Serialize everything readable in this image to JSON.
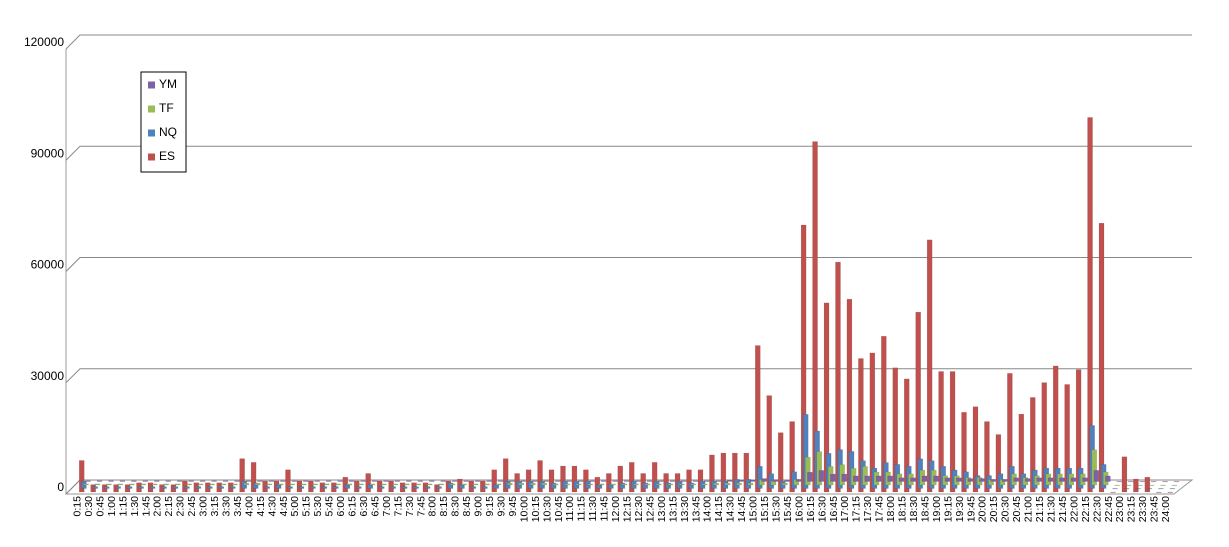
{
  "chart_data": {
    "type": "bar",
    "categories": [
      "0:15",
      "0:30",
      "0:45",
      "1:00",
      "1:15",
      "1:30",
      "1:45",
      "2:00",
      "2:15",
      "2:30",
      "2:45",
      "3:00",
      "3:15",
      "3:30",
      "3:45",
      "4:00",
      "4:15",
      "4:30",
      "4:45",
      "5:00",
      "5:15",
      "5:30",
      "5:45",
      "6:00",
      "6:15",
      "6:30",
      "6:45",
      "7:00",
      "7:15",
      "7:30",
      "7:45",
      "8:00",
      "8:15",
      "8:30",
      "8:45",
      "9:00",
      "9:15",
      "9:30",
      "9:45",
      "10:00",
      "10:15",
      "10:30",
      "10:45",
      "11:00",
      "11:15",
      "11:30",
      "11:45",
      "12:00",
      "12:15",
      "12:30",
      "12:45",
      "13:00",
      "13:15",
      "13:30",
      "13:45",
      "14:00",
      "14:15",
      "14:30",
      "14:45",
      "15:00",
      "15:15",
      "15:30",
      "15:45",
      "16:00",
      "16:15",
      "16:30",
      "16:45",
      "17:00",
      "17:15",
      "17:30",
      "17:45",
      "18:00",
      "18:15",
      "18:30",
      "18:45",
      "19:00",
      "19:15",
      "19:30",
      "19:45",
      "20:00",
      "20:15",
      "20:30",
      "20:45",
      "21:00",
      "21:15",
      "21:30",
      "21:45",
      "22:00",
      "22:15",
      "22:30",
      "22:45",
      "23:00",
      "23:15",
      "23:30",
      "23:45",
      "24:00"
    ],
    "series": [
      {
        "name": "YM",
        "color": "#7e62a3",
        "values": [
          200,
          200,
          200,
          200,
          200,
          200,
          200,
          200,
          200,
          200,
          200,
          200,
          200,
          200,
          200,
          200,
          200,
          200,
          200,
          200,
          200,
          200,
          200,
          200,
          200,
          200,
          200,
          200,
          200,
          200,
          200,
          200,
          200,
          200,
          200,
          200,
          200,
          200,
          200,
          200,
          200,
          200,
          200,
          200,
          200,
          200,
          200,
          200,
          200,
          200,
          200,
          200,
          200,
          200,
          200,
          200,
          300,
          300,
          300,
          800,
          500,
          300,
          600,
          2500,
          3000,
          2000,
          2000,
          1500,
          1500,
          1500,
          1500,
          1000,
          1000,
          1500,
          1500,
          1000,
          1000,
          800,
          800,
          600,
          600,
          1000,
          800,
          1000,
          1000,
          1000,
          1000,
          1000,
          3000,
          1500,
          0,
          0,
          0,
          0,
          0,
          0
        ]
      },
      {
        "name": "TF",
        "color": "#9bbb59",
        "values": [
          300,
          300,
          300,
          300,
          300,
          300,
          300,
          300,
          300,
          300,
          300,
          300,
          300,
          300,
          500,
          500,
          300,
          300,
          300,
          300,
          300,
          300,
          300,
          300,
          300,
          300,
          300,
          300,
          300,
          300,
          300,
          300,
          300,
          300,
          300,
          300,
          300,
          500,
          500,
          500,
          500,
          300,
          300,
          300,
          300,
          300,
          300,
          300,
          300,
          300,
          300,
          300,
          300,
          300,
          300,
          500,
          500,
          500,
          500,
          1500,
          1000,
          500,
          1500,
          7500,
          9000,
          5000,
          5500,
          4500,
          5000,
          3500,
          3500,
          3000,
          3000,
          4000,
          4000,
          2500,
          2500,
          2000,
          2000,
          1500,
          1500,
          3000,
          2000,
          2500,
          3000,
          3000,
          3000,
          3000,
          9500,
          3500,
          0,
          0,
          0,
          0,
          0,
          0
        ]
      },
      {
        "name": "NQ",
        "color": "#4f81bd",
        "values": [
          2000,
          500,
          500,
          500,
          500,
          500,
          500,
          500,
          500,
          500,
          500,
          500,
          500,
          500,
          2000,
          1500,
          500,
          1000,
          500,
          500,
          500,
          500,
          500,
          1000,
          500,
          1000,
          500,
          500,
          500,
          500,
          500,
          500,
          1500,
          1000,
          500,
          500,
          1000,
          2000,
          2000,
          2000,
          2000,
          1500,
          2000,
          2000,
          2000,
          1000,
          1000,
          1500,
          2000,
          1500,
          2000,
          1500,
          2000,
          1500,
          2000,
          2000,
          2000,
          2500,
          2500,
          6000,
          4000,
          2000,
          4500,
          20000,
          15500,
          9500,
          10500,
          10000,
          7500,
          5500,
          7000,
          6500,
          6000,
          8000,
          7500,
          6000,
          5000,
          4500,
          3500,
          3500,
          4000,
          6000,
          4000,
          5000,
          5500,
          5500,
          5500,
          5500,
          17000,
          6500,
          0,
          0,
          0,
          0,
          0,
          0
        ]
      },
      {
        "name": "ES",
        "color": "#c0504d",
        "values": [
          8500,
          2000,
          2000,
          2000,
          2000,
          2500,
          2500,
          2000,
          2000,
          3000,
          2500,
          2500,
          2500,
          2500,
          9000,
          8000,
          3000,
          3000,
          6000,
          3000,
          3000,
          2500,
          2500,
          4000,
          3000,
          5000,
          3000,
          3000,
          2500,
          2500,
          2500,
          2000,
          3000,
          3500,
          3000,
          3000,
          6000,
          9000,
          5000,
          6000,
          8500,
          6000,
          7000,
          7000,
          6000,
          4000,
          5000,
          7000,
          8000,
          5000,
          8000,
          5000,
          5000,
          6000,
          6000,
          10000,
          10500,
          10500,
          10500,
          39500,
          26000,
          16000,
          19000,
          72000,
          94500,
          51000,
          62000,
          52000,
          36000,
          37500,
          42000,
          33500,
          30500,
          48500,
          68000,
          32500,
          32500,
          21500,
          23000,
          19000,
          15500,
          32000,
          21000,
          25500,
          29500,
          34000,
          29000,
          33000,
          101000,
          72500,
          0,
          9500,
          3500,
          4000,
          0,
          0
        ]
      }
    ],
    "ylim": [
      0,
      120000
    ],
    "yticks": [
      0,
      30000,
      60000,
      90000,
      120000
    ],
    "grid": true
  }
}
